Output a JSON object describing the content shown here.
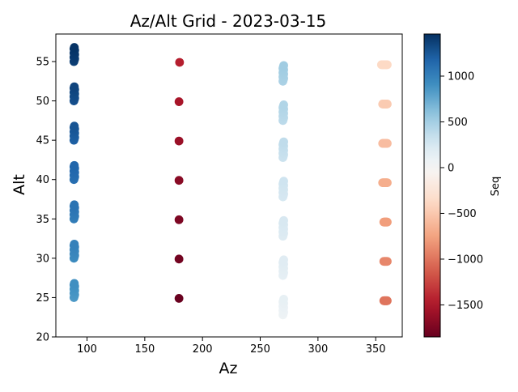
{
  "chart_data": {
    "type": "scatter",
    "title": "Az/Alt Grid - 2023-03-15",
    "xlabel": "Az",
    "ylabel": "Alt",
    "xlim": [
      73,
      373
    ],
    "ylim": [
      20,
      58.5
    ],
    "xticks": [
      100,
      150,
      200,
      250,
      300,
      350
    ],
    "yticks": [
      20,
      25,
      30,
      35,
      40,
      45,
      50,
      55
    ],
    "grid": false,
    "colormap": "RdBu",
    "colorbar": {
      "label": "Seq",
      "range": [
        -1850,
        1460
      ],
      "ticks": [
        -1500,
        -1000,
        -500,
        0,
        500,
        1000
      ],
      "tick_labels": [
        "−1500",
        "−1000",
        "−500",
        "0",
        "500",
        "1000"
      ],
      "colors": [
        "#67001f",
        "#b2182b",
        "#d6604d",
        "#f4a582",
        "#fddbc7",
        "#f7f7f7",
        "#d1e5f0",
        "#92c5de",
        "#4393c3",
        "#2166ac",
        "#053061"
      ]
    },
    "columns": [
      {
        "name": "az_90",
        "segments": [
          {
            "az": 89,
            "alt_top": 56.8,
            "alt_bottom": 55.0,
            "seq_top": 1440,
            "seq_bottom": 1380
          },
          {
            "az": 89,
            "alt_top": 51.8,
            "alt_bottom": 50.0,
            "seq_top": 1350,
            "seq_bottom": 1290
          },
          {
            "az": 89,
            "alt_top": 46.8,
            "alt_bottom": 45.0,
            "seq_top": 1260,
            "seq_bottom": 1200
          },
          {
            "az": 89,
            "alt_top": 41.8,
            "alt_bottom": 40.0,
            "seq_top": 1170,
            "seq_bottom": 1110
          },
          {
            "az": 89,
            "alt_top": 36.8,
            "alt_bottom": 35.0,
            "seq_top": 1080,
            "seq_bottom": 1020
          },
          {
            "az": 89,
            "alt_top": 31.8,
            "alt_bottom": 30.0,
            "seq_top": 990,
            "seq_bottom": 930
          },
          {
            "az": 89,
            "alt_top": 26.8,
            "alt_bottom": 25.0,
            "seq_top": 900,
            "seq_bottom": 840
          }
        ]
      },
      {
        "name": "az_180",
        "segments": [
          {
            "az": 180.5,
            "alt_top": 55.1,
            "alt_bottom": 54.9,
            "seq_top": -1450,
            "seq_bottom": -1450
          },
          {
            "az": 180.0,
            "alt_top": 50.1,
            "alt_bottom": 49.9,
            "seq_top": -1530,
            "seq_bottom": -1530
          },
          {
            "az": 180.0,
            "alt_top": 45.1,
            "alt_bottom": 44.9,
            "seq_top": -1600,
            "seq_bottom": -1600
          },
          {
            "az": 180.0,
            "alt_top": 40.1,
            "alt_bottom": 39.9,
            "seq_top": -1680,
            "seq_bottom": -1680
          },
          {
            "az": 180.0,
            "alt_top": 35.1,
            "alt_bottom": 34.9,
            "seq_top": -1740,
            "seq_bottom": -1740
          },
          {
            "az": 180.0,
            "alt_top": 30.1,
            "alt_bottom": 29.9,
            "seq_top": -1790,
            "seq_bottom": -1790
          },
          {
            "az": 180.0,
            "alt_top": 25.1,
            "alt_bottom": 24.9,
            "seq_top": -1840,
            "seq_bottom": -1840
          }
        ]
      },
      {
        "name": "az_270",
        "segments": [
          {
            "az": 270,
            "alt_top": 54.5,
            "alt_bottom": 52.5,
            "seq_top": 520,
            "seq_bottom": 470
          },
          {
            "az": 270,
            "alt_top": 49.5,
            "alt_bottom": 47.5,
            "seq_top": 440,
            "seq_bottom": 390
          },
          {
            "az": 270,
            "alt_top": 44.8,
            "alt_bottom": 42.8,
            "seq_top": 370,
            "seq_bottom": 320
          },
          {
            "az": 270,
            "alt_top": 39.8,
            "alt_bottom": 37.8,
            "seq_top": 300,
            "seq_bottom": 250
          },
          {
            "az": 270,
            "alt_top": 34.8,
            "alt_bottom": 32.8,
            "seq_top": 240,
            "seq_bottom": 190
          },
          {
            "az": 270,
            "alt_top": 29.8,
            "alt_bottom": 27.8,
            "seq_top": 180,
            "seq_bottom": 130
          },
          {
            "az": 270,
            "alt_top": 24.8,
            "alt_bottom": 22.8,
            "seq_top": 120,
            "seq_bottom": 70
          }
        ]
      },
      {
        "name": "az_358",
        "segments": [
          {
            "az_left": 355,
            "az_right": 360,
            "alt": 54.6,
            "seq": -380
          },
          {
            "az_left": 356,
            "az_right": 360,
            "alt": 49.6,
            "seq": -480
          },
          {
            "az_left": 356,
            "az_right": 360,
            "alt": 44.6,
            "seq": -580
          },
          {
            "az_left": 356,
            "az_right": 360,
            "alt": 39.6,
            "seq": -680
          },
          {
            "az_left": 357,
            "az_right": 360,
            "alt": 34.6,
            "seq": -780
          },
          {
            "az_left": 357,
            "az_right": 360,
            "alt": 29.6,
            "seq": -900
          },
          {
            "az_left": 357,
            "az_right": 360,
            "alt": 24.6,
            "seq": -1000
          }
        ]
      }
    ]
  }
}
